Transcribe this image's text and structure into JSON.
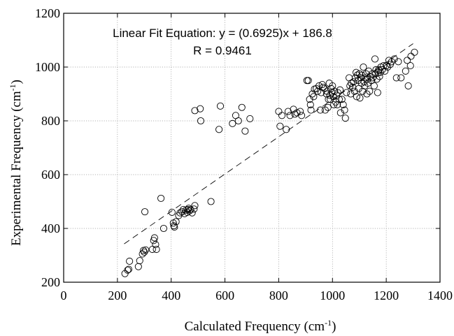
{
  "chart_data": {
    "type": "scatter",
    "xlabel": "Calculated  Frequency (cm",
    "xlabel_sup": "-1",
    "xlabel_end": ")",
    "ylabel": "Experimental Frequency (cm",
    "ylabel_sup": "-1",
    "ylabel_end": ")",
    "xlim": [
      0,
      1400
    ],
    "ylim": [
      200,
      1200
    ],
    "xticks": [
      0,
      200,
      400,
      600,
      800,
      1000,
      1200,
      1400
    ],
    "yticks": [
      200,
      400,
      600,
      800,
      1000,
      1200
    ],
    "grid": true,
    "annotation_line1": "Linear Fit Equation: y = (0.6925)x + 186.8",
    "annotation_line2": "R = 0.9461",
    "fit": {
      "slope": 0.6925,
      "intercept": 186.8,
      "x_range": [
        225,
        1300
      ]
    },
    "series": [
      {
        "points": [
          [
            228,
            232
          ],
          [
            238,
            245
          ],
          [
            245,
            278
          ],
          [
            242,
            248
          ],
          [
            278,
            258
          ],
          [
            283,
            280
          ],
          [
            293,
            305
          ],
          [
            297,
            318
          ],
          [
            300,
            312
          ],
          [
            305,
            320
          ],
          [
            302,
            462
          ],
          [
            330,
            322
          ],
          [
            335,
            355
          ],
          [
            338,
            365
          ],
          [
            342,
            340
          ],
          [
            345,
            322
          ],
          [
            362,
            512
          ],
          [
            372,
            400
          ],
          [
            403,
            460
          ],
          [
            408,
            420
          ],
          [
            410,
            410
          ],
          [
            412,
            405
          ],
          [
            418,
            425
          ],
          [
            428,
            448
          ],
          [
            433,
            458
          ],
          [
            440,
            462
          ],
          [
            445,
            470
          ],
          [
            450,
            455
          ],
          [
            455,
            468
          ],
          [
            460,
            460
          ],
          [
            462,
            470
          ],
          [
            465,
            475
          ],
          [
            468,
            465
          ],
          [
            472,
            470
          ],
          [
            478,
            458
          ],
          [
            485,
            472
          ],
          [
            488,
            485
          ],
          [
            548,
            500
          ],
          [
            488,
            838
          ],
          [
            508,
            845
          ],
          [
            510,
            800
          ],
          [
            578,
            768
          ],
          [
            583,
            855
          ],
          [
            628,
            790
          ],
          [
            640,
            820
          ],
          [
            650,
            800
          ],
          [
            663,
            850
          ],
          [
            675,
            762
          ],
          [
            693,
            808
          ],
          [
            800,
            835
          ],
          [
            805,
            780
          ],
          [
            812,
            820
          ],
          [
            828,
            768
          ],
          [
            835,
            835
          ],
          [
            842,
            820
          ],
          [
            855,
            843
          ],
          [
            860,
            825
          ],
          [
            868,
            830
          ],
          [
            880,
            835
          ],
          [
            885,
            820
          ],
          [
            905,
            950
          ],
          [
            910,
            950
          ],
          [
            915,
            880
          ],
          [
            918,
            860
          ],
          [
            920,
            840
          ],
          [
            925,
            900
          ],
          [
            930,
            890
          ],
          [
            933,
            918
          ],
          [
            940,
            920
          ],
          [
            945,
            910
          ],
          [
            950,
            930
          ],
          [
            955,
            840
          ],
          [
            958,
            905
          ],
          [
            962,
            935
          ],
          [
            965,
            925
          ],
          [
            970,
            920
          ],
          [
            973,
            840
          ],
          [
            978,
            900
          ],
          [
            980,
            910
          ],
          [
            983,
            850
          ],
          [
            985,
            880
          ],
          [
            988,
            940
          ],
          [
            990,
            895
          ],
          [
            992,
            880
          ],
          [
            995,
            920
          ],
          [
            998,
            905
          ],
          [
            1000,
            930
          ],
          [
            1003,
            890
          ],
          [
            1005,
            860
          ],
          [
            1008,
            910
          ],
          [
            1012,
            870
          ],
          [
            1015,
            895
          ],
          [
            1018,
            860
          ],
          [
            1020,
            905
          ],
          [
            1025,
            880
          ],
          [
            1028,
            915
          ],
          [
            1030,
            830
          ],
          [
            1035,
            880
          ],
          [
            1040,
            860
          ],
          [
            1045,
            840
          ],
          [
            1048,
            810
          ],
          [
            1052,
            905
          ],
          [
            1062,
            960
          ],
          [
            1065,
            930
          ],
          [
            1068,
            900
          ],
          [
            1070,
            940
          ],
          [
            1075,
            925
          ],
          [
            1078,
            945
          ],
          [
            1082,
            910
          ],
          [
            1085,
            960
          ],
          [
            1088,
            980
          ],
          [
            1090,
            890
          ],
          [
            1092,
            970
          ],
          [
            1095,
            950
          ],
          [
            1098,
            920
          ],
          [
            1100,
            975
          ],
          [
            1102,
            885
          ],
          [
            1105,
            960
          ],
          [
            1108,
            940
          ],
          [
            1110,
            970
          ],
          [
            1112,
            910
          ],
          [
            1115,
            1000
          ],
          [
            1118,
            945
          ],
          [
            1120,
            930
          ],
          [
            1122,
            960
          ],
          [
            1125,
            975
          ],
          [
            1128,
            900
          ],
          [
            1130,
            955
          ],
          [
            1132,
            940
          ],
          [
            1135,
            985
          ],
          [
            1138,
            910
          ],
          [
            1140,
            965
          ],
          [
            1145,
            950
          ],
          [
            1148,
            975
          ],
          [
            1150,
            960
          ],
          [
            1155,
            930
          ],
          [
            1158,
            1030
          ],
          [
            1160,
            975
          ],
          [
            1162,
            990
          ],
          [
            1165,
            955
          ],
          [
            1168,
            905
          ],
          [
            1170,
            980
          ],
          [
            1172,
            990
          ],
          [
            1175,
            965
          ],
          [
            1178,
            980
          ],
          [
            1180,
            1000
          ],
          [
            1185,
            990
          ],
          [
            1190,
            1005
          ],
          [
            1195,
            985
          ],
          [
            1200,
            1005
          ],
          [
            1205,
            1000
          ],
          [
            1210,
            1025
          ],
          [
            1215,
            1010
          ],
          [
            1220,
            1020
          ],
          [
            1230,
            1030
          ],
          [
            1238,
            960
          ],
          [
            1245,
            1020
          ],
          [
            1255,
            960
          ],
          [
            1272,
            985
          ],
          [
            1278,
            1025
          ],
          [
            1282,
            930
          ],
          [
            1290,
            1005
          ],
          [
            1292,
            1040
          ],
          [
            1305,
            1055
          ]
        ]
      }
    ]
  }
}
